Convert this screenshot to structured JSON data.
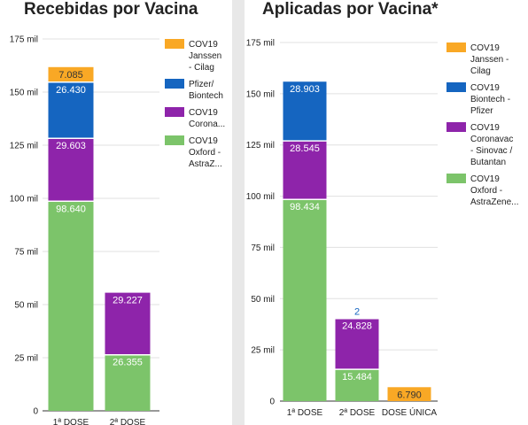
{
  "colors": {
    "janssen": "#f9a825",
    "pfizer": "#1565c0",
    "coronavac": "#8e24aa",
    "astrazeneca": "#7cc46a",
    "label_on_color": "#ffffff",
    "axis_text": "#222222",
    "grid": "#e0e0e0"
  },
  "chart_data": [
    {
      "type": "bar",
      "stacked": true,
      "title": "Recebidas por Vacina",
      "categories": [
        "1ª DOSE",
        "2ª DOSE"
      ],
      "y_ticks": [
        "0",
        "25 mil",
        "50 mil",
        "75 mil",
        "100 mil",
        "125 mil",
        "150 mil",
        "175 mil"
      ],
      "ylim": [
        0,
        175000
      ],
      "legend_position": "top-right",
      "series": [
        {
          "name": "COV19 Oxford - AstraZ...",
          "legend_lines": [
            "COV19",
            "Oxford -",
            "AstraZ..."
          ],
          "color_key": "astrazeneca",
          "values": [
            98640,
            26355
          ],
          "labels": [
            "98.640",
            "26.355"
          ]
        },
        {
          "name": "COV19 Corona...",
          "legend_lines": [
            "COV19",
            "Corona..."
          ],
          "color_key": "coronavac",
          "values": [
            29603,
            29227
          ],
          "labels": [
            "29.603",
            "29.227"
          ]
        },
        {
          "name": "Pfizer/ Biontech",
          "legend_lines": [
            "Pfizer/",
            "Biontech"
          ],
          "color_key": "pfizer",
          "values": [
            26430,
            0
          ],
          "labels": [
            "26.430",
            ""
          ]
        },
        {
          "name": "COV19 Janssen - Cilag",
          "legend_lines": [
            "COV19",
            "Janssen",
            "- Cilag"
          ],
          "color_key": "janssen",
          "values": [
            7085,
            0
          ],
          "labels": [
            "7.085",
            ""
          ]
        }
      ]
    },
    {
      "type": "bar",
      "stacked": true,
      "title": "Aplicadas por Vacina*",
      "categories": [
        "1ª DOSE",
        "2ª DOSE",
        "DOSE ÚNICA"
      ],
      "y_ticks": [
        "0",
        "25 mil",
        "50 mil",
        "75 mil",
        "100 mil",
        "125 mil",
        "150 mil",
        "175 mil"
      ],
      "ylim": [
        0,
        175000
      ],
      "legend_position": "top-right",
      "series": [
        {
          "name": "COV19 Oxford - AstraZene...",
          "legend_lines": [
            "COV19",
            "Oxford -",
            "AstraZene..."
          ],
          "color_key": "astrazeneca",
          "values": [
            98434,
            15484,
            0
          ],
          "labels": [
            "98.434",
            "15.484",
            ""
          ]
        },
        {
          "name": "COV19 Coronavac - Sinovac / Butantan",
          "legend_lines": [
            "COV19",
            "Coronavac",
            "- Sinovac /",
            "Butantan"
          ],
          "color_key": "coronavac",
          "values": [
            28545,
            24828,
            0
          ],
          "labels": [
            "28.545",
            "24.828",
            ""
          ]
        },
        {
          "name": "COV19 Biontech - Pfizer",
          "legend_lines": [
            "COV19",
            "Biontech -",
            "Pfizer"
          ],
          "color_key": "pfizer",
          "values": [
            28903,
            2,
            0
          ],
          "labels": [
            "28.903",
            "2",
            ""
          ]
        },
        {
          "name": "COV19 Janssen - Cilag",
          "legend_lines": [
            "COV19",
            "Janssen -",
            "Cilag"
          ],
          "color_key": "janssen",
          "values": [
            0,
            0,
            6790
          ],
          "labels": [
            "",
            "",
            "6.790"
          ]
        }
      ]
    }
  ]
}
